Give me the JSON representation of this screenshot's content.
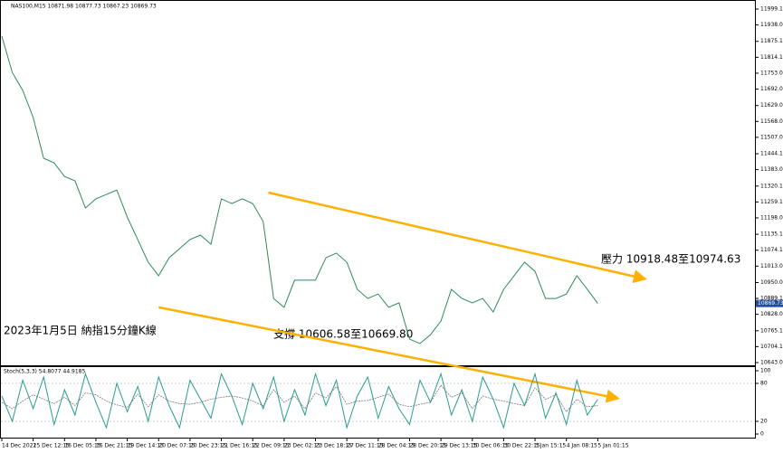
{
  "chart_data": [
    {
      "type": "line",
      "title": "NAS100,M15  10871.98 10877.73 10867.23 10869.73",
      "annotations": [
        "壓力 10918.48至10974.63",
        "支撐 10606.58至10669.80",
        "2023年1月5日 納指15分鐘K線"
      ],
      "xlim": [
        0,
        72
      ],
      "xticks": [
        {
          "value": 0,
          "label": "14 Dec 2022"
        },
        {
          "value": 3,
          "label": "15 Dec 12:15"
        },
        {
          "value": 6,
          "label": "16 Dec 05:15"
        },
        {
          "value": 9,
          "label": "16 Dec 21:15"
        },
        {
          "value": 12,
          "label": "19 Dec 14:15"
        },
        {
          "value": 15,
          "label": "20 Dec 07:15"
        },
        {
          "value": 18,
          "label": "20 Dec 23:15"
        },
        {
          "value": 21,
          "label": "21 Dec 16:15"
        },
        {
          "value": 24,
          "label": "22 Dec 09:15"
        },
        {
          "value": 27,
          "label": "23 Dec 02:15"
        },
        {
          "value": 30,
          "label": "23 Dec 18:15"
        },
        {
          "value": 33,
          "label": "27 Dec 11:15"
        },
        {
          "value": 36,
          "label": "28 Dec 04:15"
        },
        {
          "value": 39,
          "label": "28 Dec 20:15"
        },
        {
          "value": 42,
          "label": "29 Dec 13:15"
        },
        {
          "value": 45,
          "label": "30 Dec 06:15"
        },
        {
          "value": 48,
          "label": "30 Dec 22:15"
        },
        {
          "value": 51,
          "label": "3 Jan 15:15"
        },
        {
          "value": 54,
          "label": "4 Jan 08:15"
        },
        {
          "value": 57,
          "label": "5 Jan 01:15"
        }
      ],
      "ylim": [
        10632.6,
        12023.4
      ],
      "yticks": [
        {
          "value": 11999.1,
          "label": "11999.10"
        },
        {
          "value": 11938.05,
          "label": "11938.05"
        },
        {
          "value": 11875.15,
          "label": "11875.15"
        },
        {
          "value": 11814.1,
          "label": "11814.10"
        },
        {
          "value": 11753.05,
          "label": "11753.05"
        },
        {
          "value": 11692,
          "label": "11692.00"
        },
        {
          "value": 11629,
          "label": "11629.00"
        },
        {
          "value": 11568,
          "label": "11568.00"
        },
        {
          "value": 11507,
          "label": "11507.00"
        },
        {
          "value": 11444.1,
          "label": "11444.10"
        },
        {
          "value": 11383.05,
          "label": "11383.05"
        },
        {
          "value": 11320.15,
          "label": "11320.15"
        },
        {
          "value": 11259.1,
          "label": "11259.10"
        },
        {
          "value": 11198.05,
          "label": "11198.05"
        },
        {
          "value": 11135.15,
          "label": "11135.15"
        },
        {
          "value": 11074.1,
          "label": "11074.10"
        },
        {
          "value": 11013.05,
          "label": "11013.05"
        },
        {
          "value": 10950,
          "label": "10950.00"
        },
        {
          "value": 10889.1,
          "label": "10889.10"
        },
        {
          "value": 10828.05,
          "label": "10828.05"
        },
        {
          "value": 10765.15,
          "label": "10765.15"
        },
        {
          "value": 10704.1,
          "label": "10704.10"
        },
        {
          "value": 10643.05,
          "label": "10643.05"
        }
      ],
      "last_price": {
        "value": 10869.73,
        "label": "10869.73"
      },
      "series": [
        {
          "color": "#2e8b57",
          "values": [
            11895,
            11756,
            11687,
            11583,
            11427,
            11409,
            11357,
            11340,
            11236,
            11271,
            11288,
            11305,
            11201,
            11115,
            11028,
            10976,
            11045,
            11080,
            11115,
            11132,
            11097,
            11271,
            11253,
            11271,
            11253,
            11184,
            10889,
            10855,
            10959,
            10959,
            10959,
            11045,
            11063,
            11028,
            10924,
            10889,
            10906,
            10855,
            10872,
            10733,
            10716,
            10750,
            10802,
            10924,
            10889,
            10872,
            10889,
            10837,
            10924,
            10976,
            11028,
            10993,
            10889,
            10889,
            10906,
            10976,
            10924,
            10870
          ]
        },
        {
          "color": "#ffb000",
          "x": [
            25.5,
            61.3
          ],
          "values": [
            11295,
            10966
          ]
        },
        {
          "color": "#ffb000",
          "x": [
            15,
            58.7
          ],
          "values": [
            10855,
            10507.6
          ]
        }
      ]
    },
    {
      "type": "line",
      "title": "Stoch(5,3,3) 54.8077 44.9185",
      "ylim": [
        0,
        100
      ],
      "yticks": [
        100,
        80,
        20,
        0
      ],
      "grid": true,
      "series": [
        {
          "color": "#2a9d8f",
          "values": [
            60,
            20,
            85,
            40,
            90,
            15,
            70,
            30,
            95,
            50,
            10,
            80,
            35,
            75,
            20,
            90,
            45,
            10,
            85,
            55,
            25,
            95,
            60,
            15,
            80,
            40,
            90,
            20,
            70,
            30,
            95,
            45,
            85,
            10,
            60,
            90,
            25,
            75,
            40,
            15,
            85,
            50,
            95,
            30,
            70,
            20,
            90,
            55,
            10,
            80,
            45,
            95,
            25,
            65,
            15,
            85,
            30,
            55
          ]
        },
        {
          "color": "#777777",
          "values": [
            50,
            40,
            52,
            62,
            55,
            48,
            58,
            45,
            65,
            62,
            52,
            46,
            42,
            63,
            43,
            62,
            52,
            48,
            47,
            50,
            55,
            58,
            60,
            57,
            52,
            45,
            70,
            50,
            60,
            40,
            65,
            57,
            75,
            47,
            52,
            53,
            58,
            63,
            47,
            43,
            47,
            50,
            77,
            58,
            65,
            40,
            60,
            55,
            52,
            48,
            45,
            73,
            55,
            62,
            35,
            55,
            43,
            45
          ]
        }
      ]
    }
  ]
}
